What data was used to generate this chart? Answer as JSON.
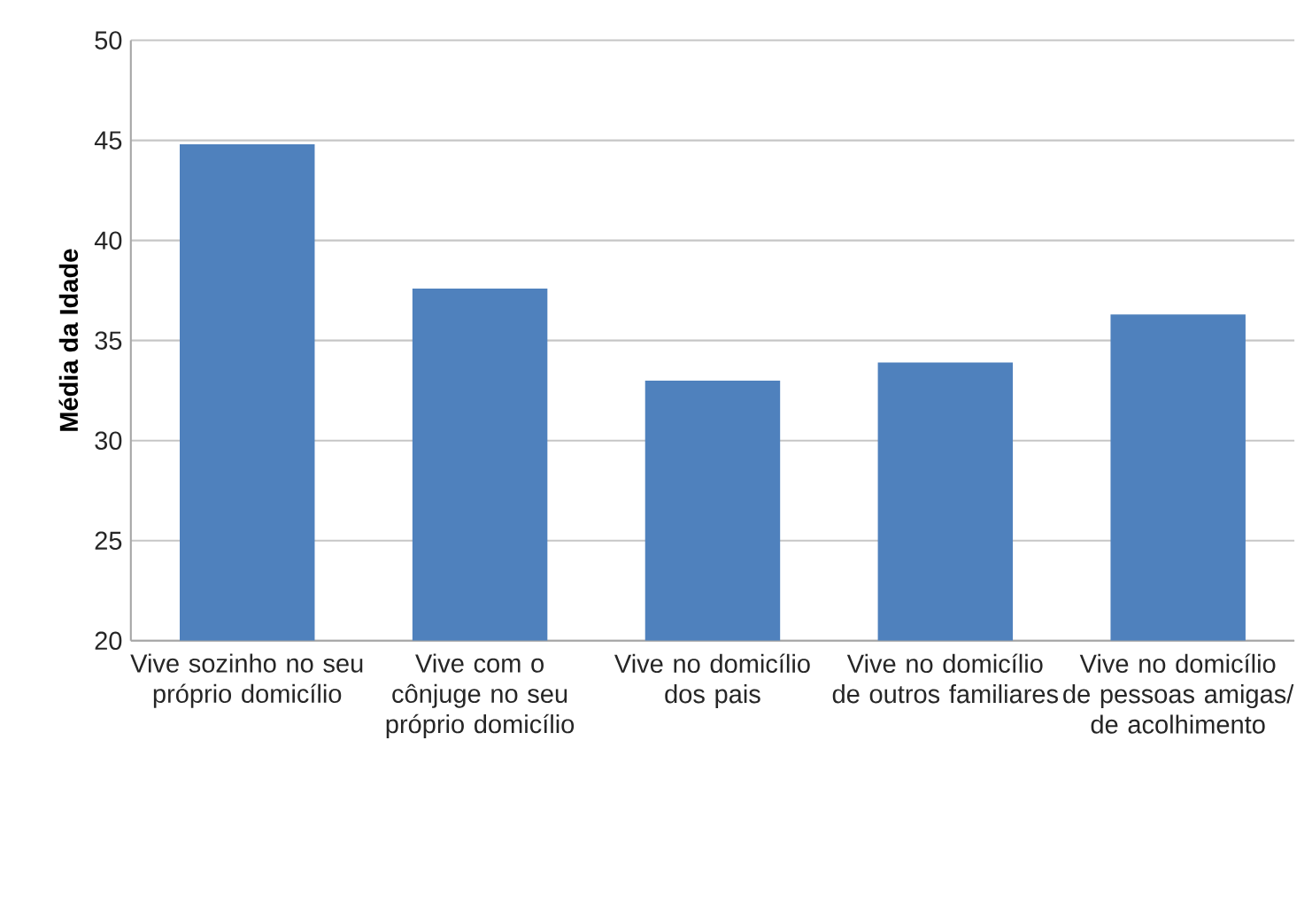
{
  "chart_data": {
    "type": "bar",
    "ylabel": "**Média da Idade**",
    "categories": [
      "Vive sozinho no seu próprio domicílio",
      "Vive com o cônjuge no seu próprio domicílio",
      "Vive no domicílio dos pais",
      "Vive no domicílio de outros familiares",
      "Vive no domicílio de pessoas amigas/ de acolhimento"
    ],
    "values": [
      44.8,
      37.6,
      33.0,
      33.9,
      36.3
    ],
    "color": "#4f81bd",
    "ylim": [
      20,
      50
    ],
    "yticks": [
      20,
      25,
      30,
      35,
      40,
      45,
      50
    ],
    "grid": "y"
  }
}
